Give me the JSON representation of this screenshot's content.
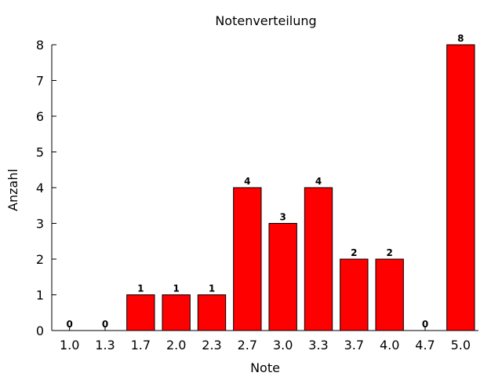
{
  "chart_data": {
    "type": "bar",
    "title": "Notenverteilung",
    "xlabel": "Note",
    "ylabel": "Anzahl",
    "categories": [
      "1.0",
      "1.3",
      "1.7",
      "2.0",
      "2.3",
      "2.7",
      "3.0",
      "3.3",
      "3.7",
      "4.0",
      "4.7",
      "5.0"
    ],
    "values": [
      0,
      0,
      1,
      1,
      1,
      4,
      3,
      4,
      2,
      2,
      0,
      8
    ],
    "ylim": [
      0,
      8
    ],
    "yticks": [
      0,
      1,
      2,
      3,
      4,
      5,
      6,
      7,
      8
    ],
    "bar_color": "#ff0000",
    "bar_edge_color": "#000000",
    "grid": false,
    "data_labels": true
  }
}
